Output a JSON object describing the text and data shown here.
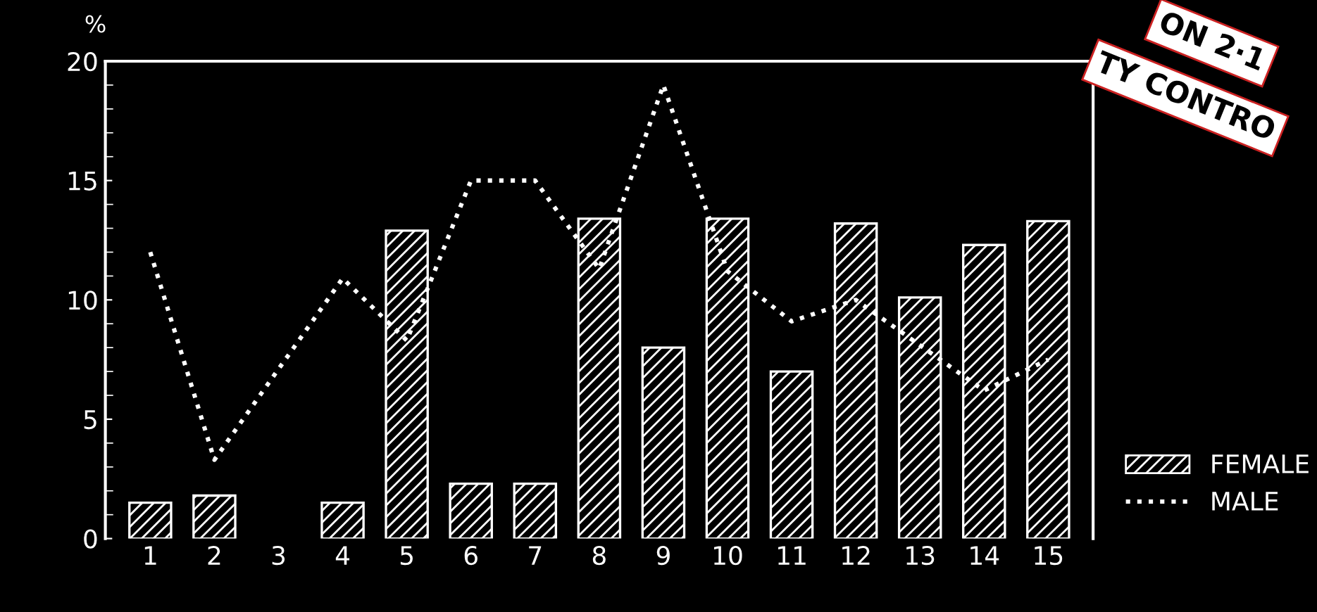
{
  "chart_data": {
    "type": "bar",
    "ylabel": "%",
    "categories": [
      "1",
      "2",
      "3",
      "4",
      "5",
      "6",
      "7",
      "8",
      "9",
      "10",
      "11",
      "12",
      "13",
      "14",
      "15"
    ],
    "series": [
      {
        "name": "FEMALE",
        "color": "#ffffff",
        "values": [
          1.5,
          1.8,
          0,
          1.5,
          12.9,
          2.3,
          2.3,
          13.4,
          8.0,
          13.4,
          7.0,
          13.2,
          10.1,
          12.3,
          13.3
        ]
      },
      {
        "name": "MALE",
        "type": "line",
        "color": "#ffffff",
        "line_style": "dotted",
        "values": [
          12.0,
          3.3,
          7.1,
          10.9,
          8.3,
          15.0,
          15.0,
          11.3,
          19.0,
          11.2,
          9.1,
          10.0,
          8.1,
          6.2,
          7.5
        ]
      }
    ],
    "ylim": [
      0,
      20
    ],
    "yticks": [
      0,
      5,
      10,
      15,
      20
    ],
    "grid": false,
    "legend": "right",
    "annotations": [
      "ON 2·1",
      "TY CONTRO"
    ]
  }
}
